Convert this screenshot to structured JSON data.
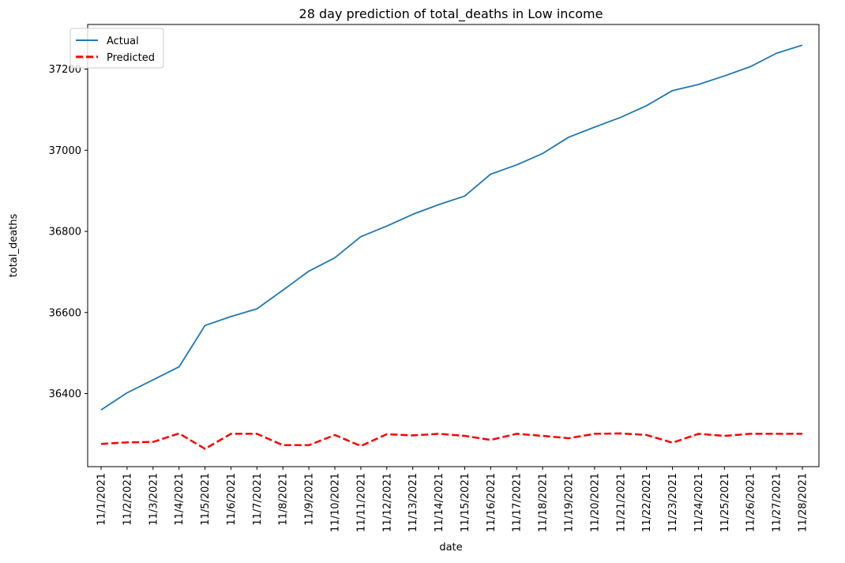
{
  "chart_data": {
    "type": "line",
    "title": "28 day prediction of total_deaths in Low income",
    "xlabel": "date",
    "ylabel": "total_deaths",
    "x": [
      "11/1/2021",
      "11/2/2021",
      "11/3/2021",
      "11/4/2021",
      "11/5/2021",
      "11/6/2021",
      "11/7/2021",
      "11/8/2021",
      "11/9/2021",
      "11/10/2021",
      "11/11/2021",
      "11/12/2021",
      "11/13/2021",
      "11/14/2021",
      "11/15/2021",
      "11/16/2021",
      "11/17/2021",
      "11/18/2021",
      "11/19/2021",
      "11/20/2021",
      "11/21/2021",
      "11/22/2021",
      "11/23/2021",
      "11/24/2021",
      "11/25/2021",
      "11/26/2021",
      "11/27/2021",
      "11/28/2021"
    ],
    "ylim": [
      36220,
      37310
    ],
    "yticks": [
      36400,
      36600,
      36800,
      37000,
      37200
    ],
    "grid": false,
    "legend": "top-left",
    "series": [
      {
        "name": "Actual",
        "color": "#1f77b4",
        "style": "solid",
        "values": [
          36360,
          36402,
          36434,
          36466,
          36568,
          36590,
          36609,
          36655,
          36702,
          36735,
          36787,
          36813,
          36842,
          36866,
          36887,
          36941,
          36964,
          36992,
          37032,
          37057,
          37081,
          37110,
          37147,
          37162,
          37183,
          37206,
          37239,
          37259
        ]
      },
      {
        "name": "Predicted",
        "color": "#ff0000",
        "style": "dashed",
        "values": [
          36276,
          36280,
          36281,
          36302,
          36264,
          36301,
          36301,
          36273,
          36273,
          36298,
          36271,
          36300,
          36297,
          36301,
          36296,
          36286,
          36301,
          36296,
          36290,
          36301,
          36302,
          36298,
          36279,
          36301,
          36296,
          36301,
          36301,
          36301
        ]
      }
    ]
  }
}
